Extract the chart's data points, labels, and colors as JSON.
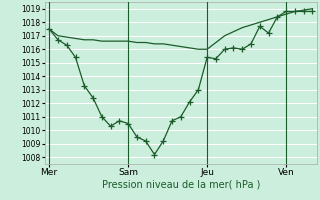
{
  "title": "",
  "xlabel": "Pression niveau de la mer( hPa )",
  "bg_color": "#cceedd",
  "grid_color": "#ffffff",
  "line_color": "#1a5c2a",
  "ylim": [
    1007.5,
    1019.5
  ],
  "yticks": [
    1008,
    1009,
    1010,
    1011,
    1012,
    1013,
    1014,
    1015,
    1016,
    1017,
    1018,
    1019
  ],
  "xtick_labels": [
    "Mer",
    "Sam",
    "Jeu",
    "Ven"
  ],
  "xtick_positions": [
    0,
    9,
    18,
    27
  ],
  "vline_positions": [
    0,
    9,
    18,
    27
  ],
  "total_points": 31,
  "line1_x": [
    0,
    1,
    2,
    3,
    4,
    5,
    6,
    7,
    8,
    9,
    10,
    11,
    12,
    13,
    14,
    15,
    16,
    17,
    18,
    19,
    20,
    21,
    22,
    23,
    24,
    25,
    26,
    27,
    28,
    29,
    30
  ],
  "line1_y": [
    1017.5,
    1016.7,
    1016.3,
    1015.4,
    1013.3,
    1012.4,
    1011.0,
    1010.3,
    1010.7,
    1010.5,
    1009.5,
    1009.2,
    1008.2,
    1009.2,
    1010.7,
    1011.0,
    1012.1,
    1013.0,
    1015.4,
    1015.3,
    1016.0,
    1016.1,
    1016.0,
    1016.4,
    1017.7,
    1017.2,
    1018.4,
    1018.8,
    1018.8,
    1018.8,
    1018.8
  ],
  "line2_x": [
    0,
    1,
    2,
    3,
    4,
    5,
    6,
    7,
    8,
    9,
    10,
    11,
    12,
    13,
    14,
    15,
    16,
    17,
    18,
    19,
    20,
    21,
    22,
    23,
    24,
    25,
    26,
    27,
    28,
    29,
    30
  ],
  "line2_y": [
    1017.5,
    1017.0,
    1016.9,
    1016.8,
    1016.7,
    1016.7,
    1016.6,
    1016.6,
    1016.6,
    1016.6,
    1016.5,
    1016.5,
    1016.4,
    1016.4,
    1016.3,
    1016.2,
    1016.1,
    1016.0,
    1016.0,
    1016.5,
    1017.0,
    1017.3,
    1017.6,
    1017.8,
    1018.0,
    1018.2,
    1018.4,
    1018.6,
    1018.8,
    1018.9,
    1019.0
  ],
  "marker_style": "+",
  "marker_size": 4,
  "linewidth": 0.9
}
